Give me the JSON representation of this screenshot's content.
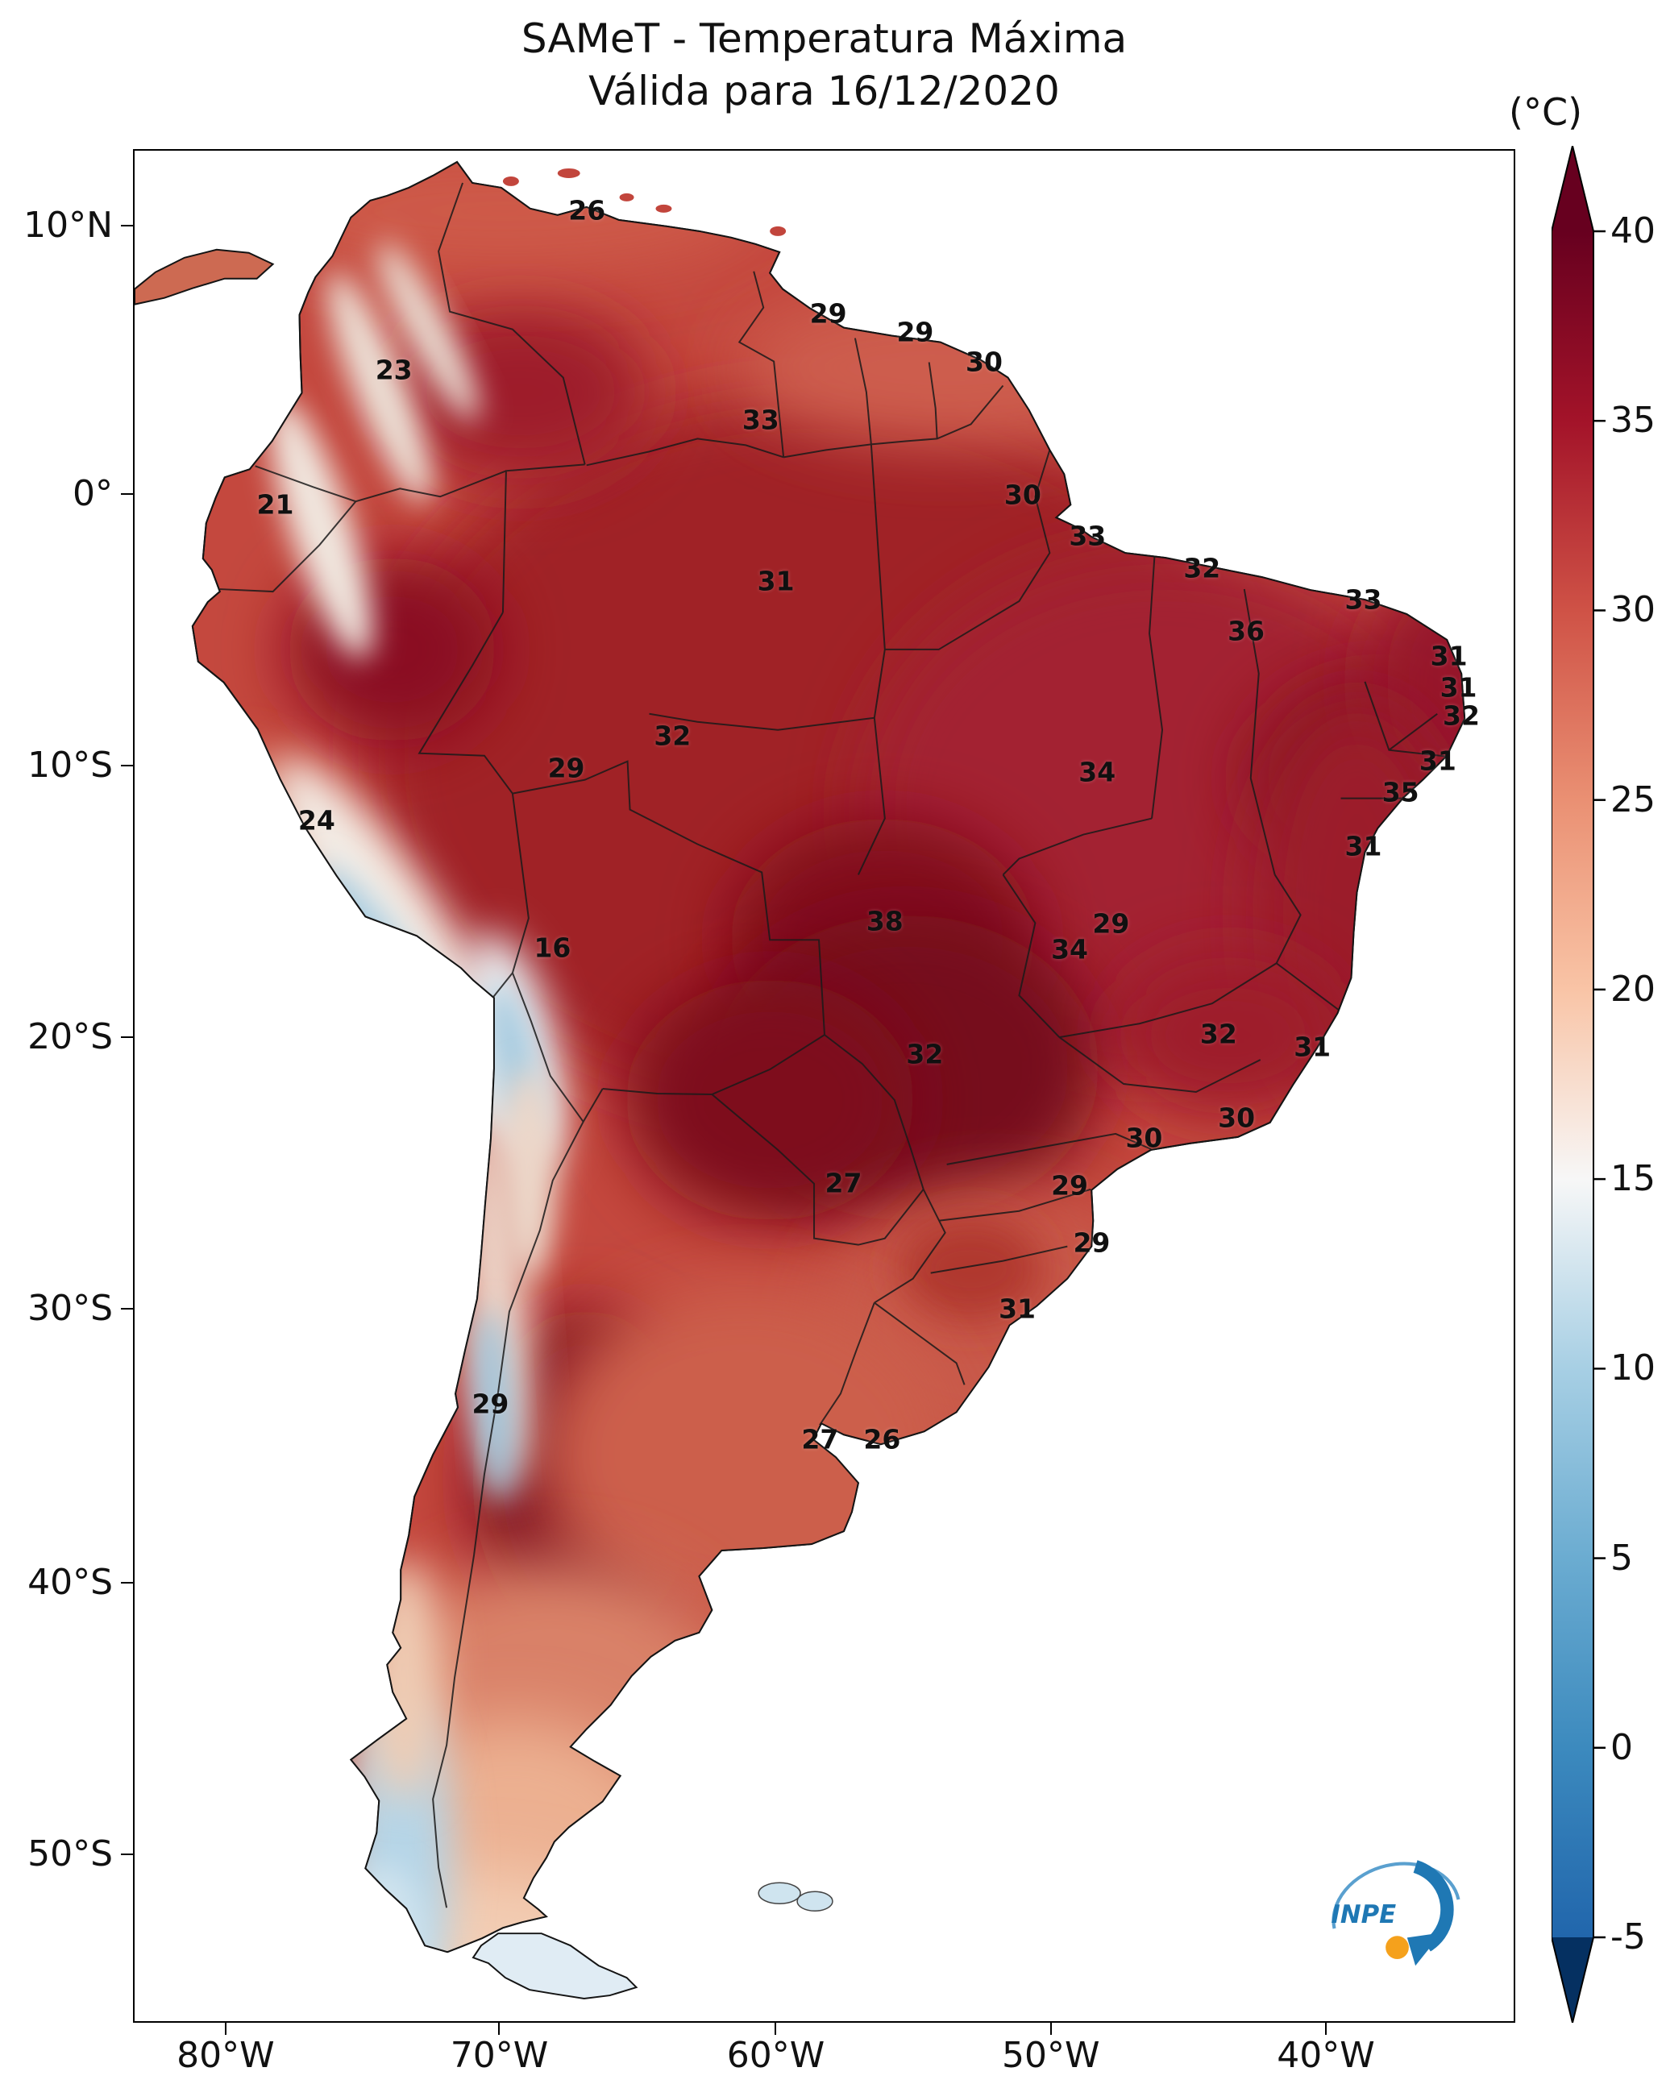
{
  "chart_data": {
    "type": "heatmap",
    "title": "SAMeT - Temperatura Máxima",
    "subtitle": "Válida para 16/12/2020",
    "unit_label": "(°C)",
    "description": "Maximum air temperature map of South America",
    "logo_text": "INPE",
    "colorbar": {
      "vmin": -5,
      "vmax": 40,
      "ticks": [
        40,
        35,
        30,
        25,
        20,
        15,
        10,
        5,
        0,
        -5
      ],
      "stops": [
        {
          "v": 40,
          "c": "#67001f"
        },
        {
          "v": 35,
          "c": "#a31329"
        },
        {
          "v": 30,
          "c": "#cf5246"
        },
        {
          "v": 25,
          "c": "#ea9073"
        },
        {
          "v": 20,
          "c": "#f9c4a6"
        },
        {
          "v": 15,
          "c": "#f7f7f7"
        },
        {
          "v": 10,
          "c": "#a7cfe4"
        },
        {
          "v": 5,
          "c": "#6bacd1"
        },
        {
          "v": 0,
          "c": "#3c8abe"
        },
        {
          "v": -5,
          "c": "#2166ac"
        }
      ],
      "over_color": "#67001f",
      "under_color": "#053061"
    },
    "lat_ticks": [
      {
        "label": "10°N",
        "pct": 4.1
      },
      {
        "label": "0°",
        "pct": 18.4
      },
      {
        "label": "10°S",
        "pct": 32.9
      },
      {
        "label": "20°S",
        "pct": 47.4
      },
      {
        "label": "30°S",
        "pct": 61.9
      },
      {
        "label": "40°S",
        "pct": 76.5
      },
      {
        "label": "50°S",
        "pct": 91.0
      }
    ],
    "lon_ticks": [
      {
        "label": "80°W",
        "pct": 6.7
      },
      {
        "label": "70°W",
        "pct": 26.5
      },
      {
        "label": "60°W",
        "pct": 46.5
      },
      {
        "label": "50°W",
        "pct": 66.4
      },
      {
        "label": "40°W",
        "pct": 86.3
      }
    ],
    "point_labels": [
      {
        "v": 26,
        "x": 32.8,
        "y": 3.2
      },
      {
        "v": 29,
        "x": 50.3,
        "y": 8.7
      },
      {
        "v": 29,
        "x": 56.6,
        "y": 9.7
      },
      {
        "v": 30,
        "x": 61.6,
        "y": 11.3
      },
      {
        "v": 23,
        "x": 18.8,
        "y": 11.7
      },
      {
        "v": 33,
        "x": 45.4,
        "y": 14.4
      },
      {
        "v": 30,
        "x": 64.4,
        "y": 18.4
      },
      {
        "v": 21,
        "x": 10.2,
        "y": 18.9
      },
      {
        "v": 33,
        "x": 69.1,
        "y": 20.6
      },
      {
        "v": 31,
        "x": 46.5,
        "y": 23.0
      },
      {
        "v": 32,
        "x": 77.4,
        "y": 22.3
      },
      {
        "v": 33,
        "x": 89.1,
        "y": 24.0
      },
      {
        "v": 36,
        "x": 80.6,
        "y": 25.7
      },
      {
        "v": 31,
        "x": 95.3,
        "y": 27.0
      },
      {
        "v": 31,
        "x": 96.0,
        "y": 28.7
      },
      {
        "v": 32,
        "x": 96.2,
        "y": 30.2
      },
      {
        "v": 32,
        "x": 39.0,
        "y": 31.3
      },
      {
        "v": 31,
        "x": 94.5,
        "y": 32.6
      },
      {
        "v": 29,
        "x": 31.3,
        "y": 33.0
      },
      {
        "v": 34,
        "x": 69.8,
        "y": 33.2
      },
      {
        "v": 35,
        "x": 91.8,
        "y": 34.3
      },
      {
        "v": 24,
        "x": 13.2,
        "y": 35.8
      },
      {
        "v": 31,
        "x": 89.1,
        "y": 37.2
      },
      {
        "v": 38,
        "x": 54.4,
        "y": 41.2
      },
      {
        "v": 29,
        "x": 70.8,
        "y": 41.3
      },
      {
        "v": 34,
        "x": 67.8,
        "y": 42.7
      },
      {
        "v": 16,
        "x": 30.3,
        "y": 42.6
      },
      {
        "v": 32,
        "x": 78.6,
        "y": 47.2
      },
      {
        "v": 31,
        "x": 85.4,
        "y": 47.9
      },
      {
        "v": 32,
        "x": 57.3,
        "y": 48.3
      },
      {
        "v": 30,
        "x": 79.9,
        "y": 51.7
      },
      {
        "v": 30,
        "x": 73.2,
        "y": 52.8
      },
      {
        "v": 27,
        "x": 51.4,
        "y": 55.2
      },
      {
        "v": 29,
        "x": 67.8,
        "y": 55.3
      },
      {
        "v": 29,
        "x": 69.4,
        "y": 58.4
      },
      {
        "v": 31,
        "x": 64.0,
        "y": 61.9
      },
      {
        "v": 29,
        "x": 25.8,
        "y": 67.0
      },
      {
        "v": 27,
        "x": 49.7,
        "y": 68.9
      },
      {
        "v": 26,
        "x": 54.2,
        "y": 68.9
      }
    ]
  }
}
